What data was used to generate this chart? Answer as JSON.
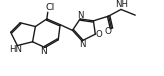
{
  "bg_color": "#ffffff",
  "line_color": "#1a1a1a",
  "line_width": 1.0,
  "figsize": [
    1.64,
    0.76
  ],
  "dpi": 100,
  "xlim": [
    0,
    164
  ],
  "ylim": [
    0,
    76
  ]
}
